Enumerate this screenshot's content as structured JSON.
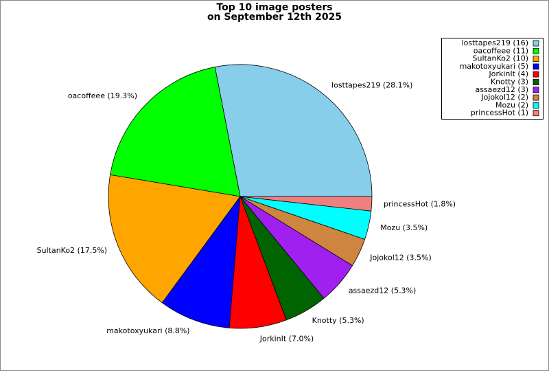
{
  "chart_data": {
    "type": "pie",
    "title": "Top 10 image posters",
    "subtitle": "on September 12th 2025",
    "categories": [
      "losttapes219",
      "oacoffeee",
      "SultanKo2",
      "makotoxyukari",
      "JorkinIt",
      "Knotty",
      "assaezd12",
      "Jojokol12",
      "Mozu",
      "princessHot"
    ],
    "values": [
      16,
      11,
      10,
      5,
      4,
      3,
      3,
      2,
      2,
      1
    ],
    "value_labels": [
      "losttapes219 (28.1%)",
      "oacoffeee (19.3%)",
      "SultanKo2 (17.5%)",
      "makotoxyukari (8.8%)",
      "JorkinIt (7.0%)",
      "Knotty (5.3%)",
      "assaezd12 (5.3%)",
      "Jojokol12 (3.5%)",
      "Mozu (3.5%)",
      "princessHot (1.8%)"
    ],
    "legend_labels": [
      "losttapes219 (16)",
      "oacoffeee (11)",
      "SultanKo2 (10)",
      "makotoxyukari (5)",
      "JorkinIt (4)",
      "Knotty (3)",
      "assaezd12 (3)",
      "Jojokol12 (2)",
      "Mozu (2)",
      "princessHot (1)"
    ],
    "colors": [
      "#87ceeb",
      "#00ff00",
      "#ffa500",
      "#0000ff",
      "#ff0000",
      "#006400",
      "#a020f0",
      "#cd853f",
      "#00ffff",
      "#f08080"
    ],
    "legend": "upper right"
  }
}
